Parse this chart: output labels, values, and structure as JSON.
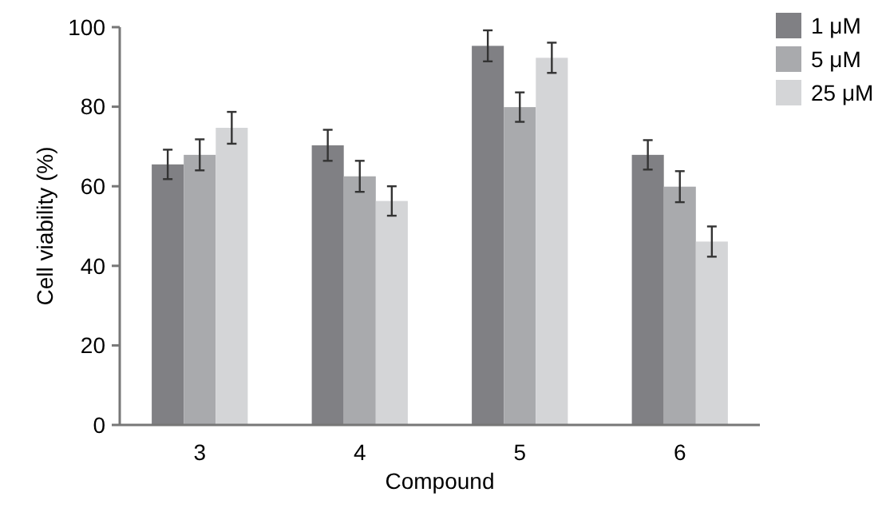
{
  "chart_data": {
    "type": "bar",
    "xlabel": "Compound",
    "ylabel": "Cell viability (%)",
    "categories": [
      "3",
      "4",
      "5",
      "6"
    ],
    "series": [
      {
        "name": "1 μM",
        "color": "#808084",
        "values": [
          65.5,
          70.3,
          95.3,
          67.9
        ],
        "errors": [
          3.7,
          3.9,
          3.9,
          3.7
        ]
      },
      {
        "name": "5 μM",
        "color": "#a9aaad",
        "values": [
          67.9,
          62.5,
          79.9,
          59.9
        ],
        "errors": [
          3.9,
          3.9,
          3.7,
          3.9
        ]
      },
      {
        "name": "25 μM",
        "color": "#d4d5d7",
        "values": [
          74.7,
          56.3,
          92.3,
          46.1
        ],
        "errors": [
          4,
          3.7,
          3.8,
          3.8
        ]
      }
    ],
    "ylim": [
      0,
      100
    ],
    "yticks": [
      0,
      20,
      40,
      60,
      80,
      100
    ],
    "grid": false,
    "legend": "top right"
  }
}
